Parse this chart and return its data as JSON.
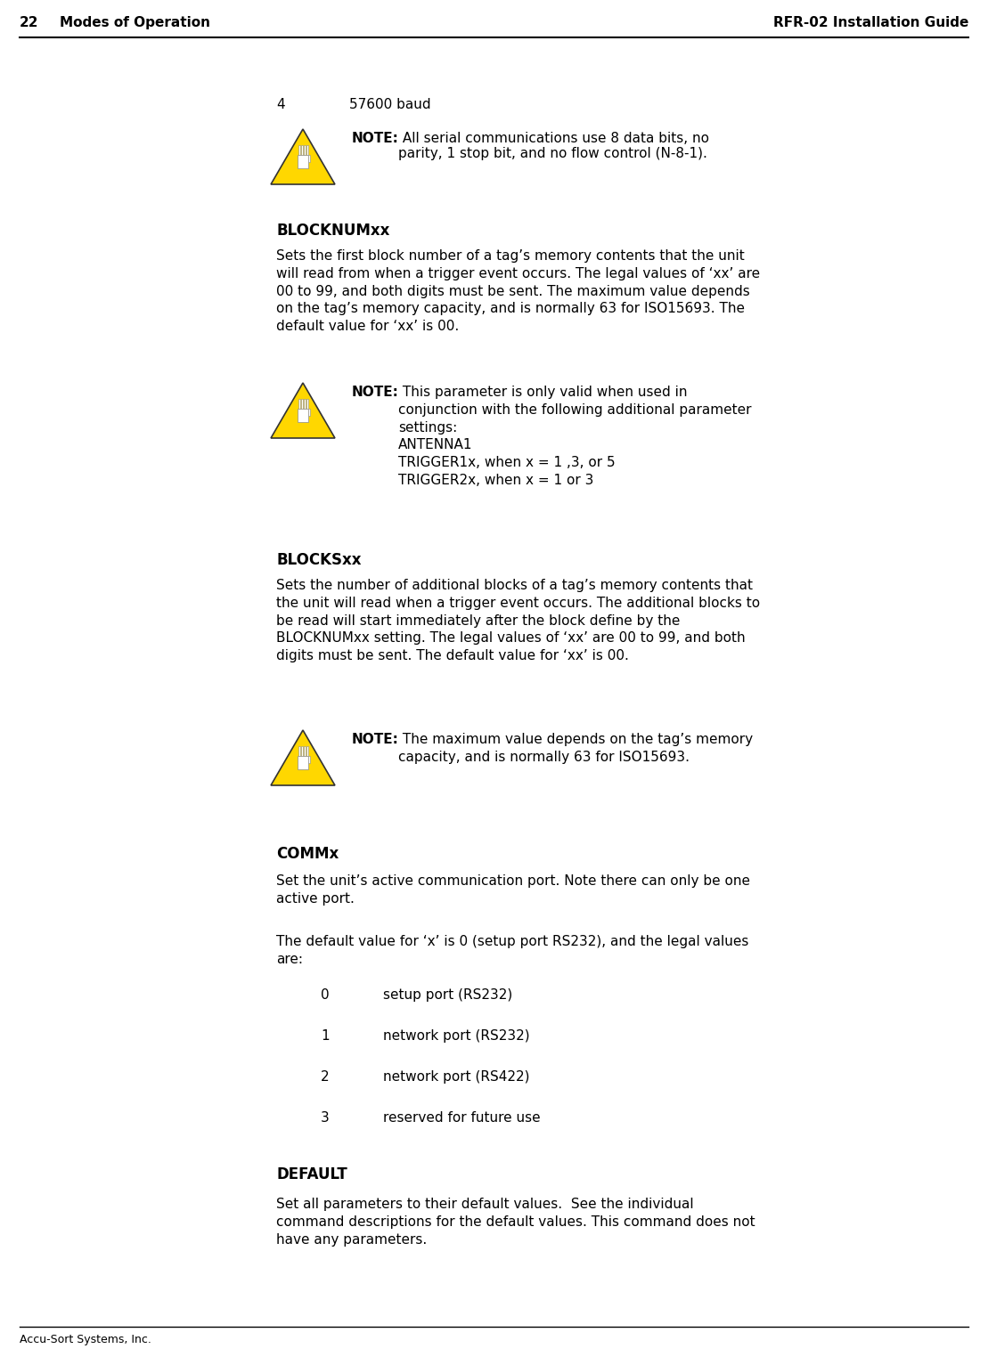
{
  "page_number": "22",
  "left_header": "Modes of Operation",
  "right_header": "RFR-02 Installation Guide",
  "footer_text": "Accu-Sort Systems, Inc.",
  "bg_color": "#ffffff",
  "baud_row": {
    "number": "4",
    "text": "57600 baud"
  },
  "note1": {
    "bold_part": "NOTE:",
    "text": " All serial communications use 8 data bits, no\nparity, 1 stop bit, and no flow control (N-8-1)."
  },
  "section1_title": "BLOCKNUMxx",
  "section1_body": "Sets the first block number of a tag’s memory contents that the unit\nwill read from when a trigger event occurs. The legal values of ‘xx’ are\n00 to 99, and both digits must be sent. The maximum value depends\non the tag’s memory capacity, and is normally 63 for ISO15693. The\ndefault value for ‘xx’ is 00.",
  "note2": {
    "bold_part": "NOTE:",
    "text": " This parameter is only valid when used in\nconjunction with the following additional parameter\nsettings:\nANTENNA1\nTRIGGER1x, when x = 1 ,3, or 5\nTRIGGER2x, when x = 1 or 3"
  },
  "section2_title": "BLOCKSxx",
  "section2_body": "Sets the number of additional blocks of a tag’s memory contents that\nthe unit will read when a trigger event occurs. The additional blocks to\nbe read will start immediately after the block define by the\nBLOCKNUMxx setting. The legal values of ‘xx’ are 00 to 99, and both\ndigits must be sent. The default value for ‘xx’ is 00.",
  "note3": {
    "bold_part": "NOTE:",
    "text": " The maximum value depends on the tag’s memory\ncapacity, and is normally 63 for ISO15693."
  },
  "section3_title": "COMMx",
  "section3_body1": "Set the unit’s active communication port. Note there can only be one\nactive port.",
  "section3_body2": "The default value for ‘x’ is 0 (setup port RS232), and the legal values\nare:",
  "comm_values": [
    {
      "number": "0",
      "text": "setup port (RS232)"
    },
    {
      "number": "1",
      "text": "network port (RS232)"
    },
    {
      "number": "2",
      "text": "network port (RS422)"
    },
    {
      "number": "3",
      "text": "reserved for future use"
    }
  ],
  "section4_title": "DEFAULT",
  "section4_body": "Set all parameters to their default values.  See the individual\ncommand descriptions for the default values. This command does not\nhave any parameters."
}
